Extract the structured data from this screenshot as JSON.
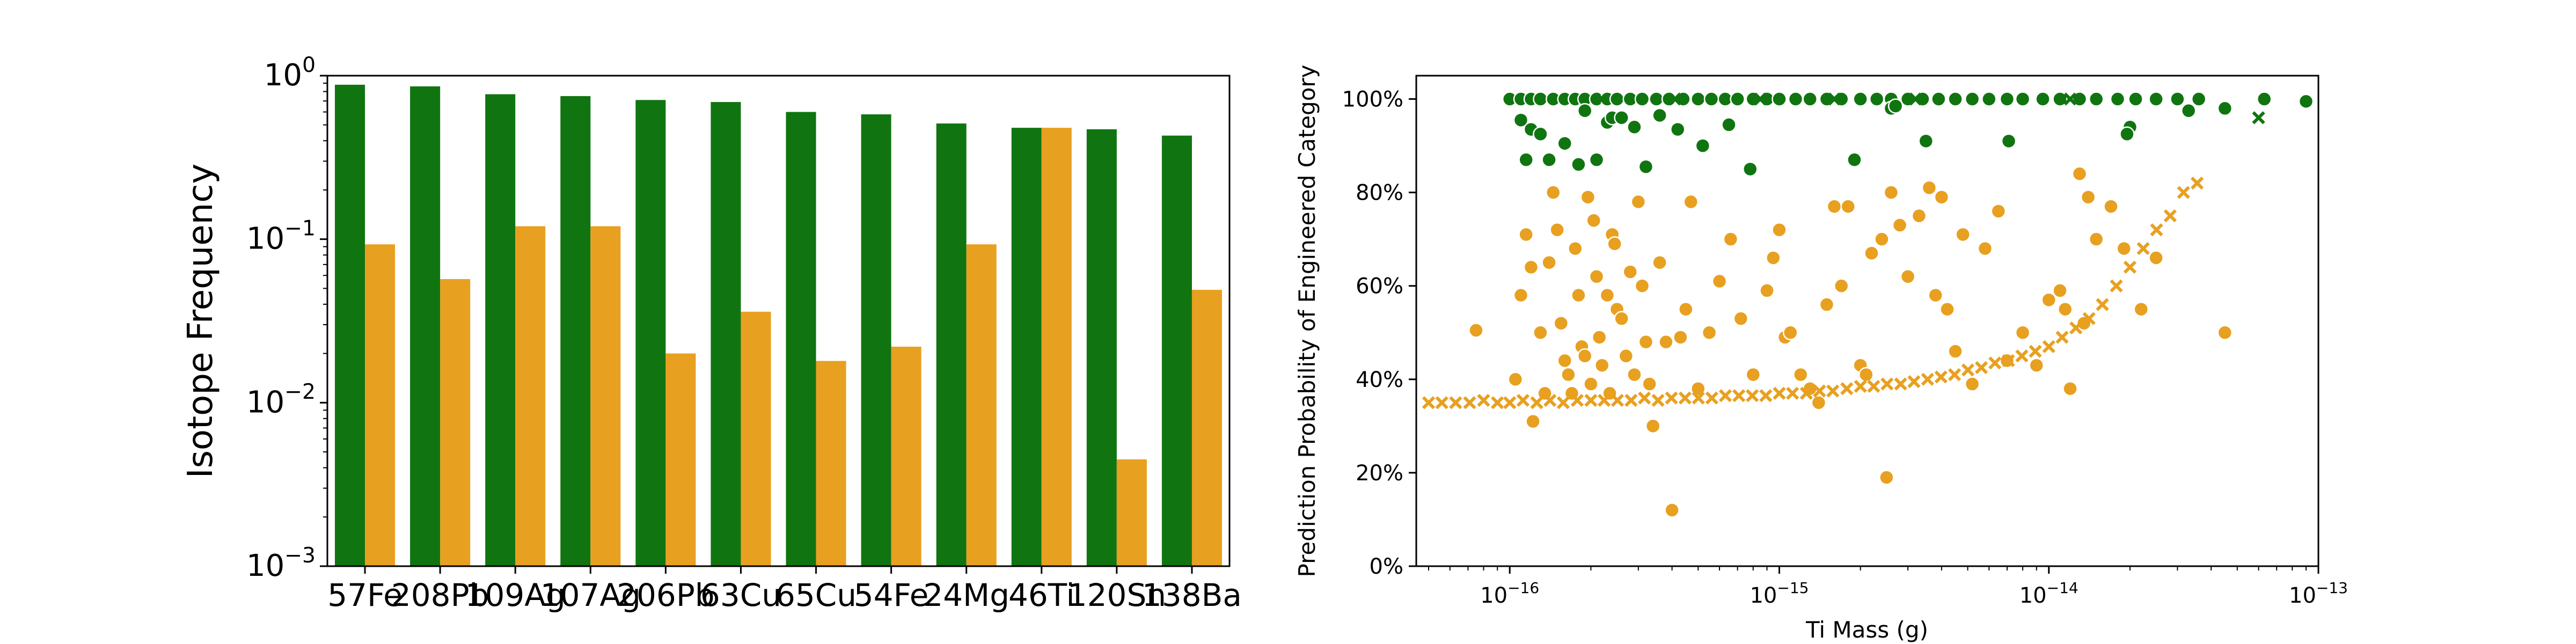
{
  "chart_data": [
    {
      "type": "bar",
      "yscale": "log",
      "ylabel": "Isotope Frequency",
      "xlabel": "",
      "ylim": [
        0.001,
        1
      ],
      "yticks": [
        {
          "value": 1,
          "label": "10^0"
        },
        {
          "value": 0.1,
          "label": "10^-1"
        },
        {
          "value": 0.01,
          "label": "10^-2"
        },
        {
          "value": 0.001,
          "label": "10^-3"
        }
      ],
      "categories": [
        "57Fe",
        "208Pb",
        "109Ag",
        "107Ag",
        "206Pb",
        "63Cu",
        "65Cu",
        "54Fe",
        "24Mg",
        "46Ti",
        "120Sn",
        "138Ba"
      ],
      "series": [
        {
          "color": "#107510",
          "values": [
            0.88,
            0.86,
            0.77,
            0.75,
            0.71,
            0.69,
            0.6,
            0.58,
            0.51,
            0.48,
            0.47,
            0.43
          ]
        },
        {
          "color": "#E8A020",
          "values": [
            0.093,
            0.057,
            0.12,
            0.12,
            0.02,
            0.036,
            0.018,
            0.022,
            0.093,
            0.48,
            0.0045,
            0.049
          ]
        }
      ],
      "grid": false,
      "legend": "none"
    },
    {
      "type": "scatter",
      "xscale": "log",
      "xlabel": "Ti Mass (g)",
      "ylabel": "Prediction Probability of Engineered Category",
      "xlim": [
        4.5e-17,
        1e-13
      ],
      "ylim": [
        0,
        1.05
      ],
      "xticks": [
        {
          "value": 1e-16,
          "label": "10^-16"
        },
        {
          "value": 1e-15,
          "label": "10^-15"
        },
        {
          "value": 1e-14,
          "label": "10^-14"
        },
        {
          "value": 1e-13,
          "label": "10^-13"
        }
      ],
      "yticks": [
        "0%",
        "20%",
        "40%",
        "60%",
        "80%",
        "100%"
      ],
      "grid": false,
      "legend": "none",
      "series": [
        {
          "color": "#107510",
          "marker": "circle",
          "points": [
            [
              1e-16,
              1.0
            ],
            [
              1.1e-16,
              1.0
            ],
            [
              1.2e-16,
              1.0
            ],
            [
              1.3e-16,
              1.0
            ],
            [
              1.45e-16,
              1.0
            ],
            [
              1.6e-16,
              1.0
            ],
            [
              1.75e-16,
              1.0
            ],
            [
              1.9e-16,
              1.0
            ],
            [
              2.1e-16,
              1.0
            ],
            [
              2.3e-16,
              1.0
            ],
            [
              2.5e-16,
              1.0
            ],
            [
              2.8e-16,
              1.0
            ],
            [
              3.1e-16,
              1.0
            ],
            [
              3.5e-16,
              1.0
            ],
            [
              3.9e-16,
              1.0
            ],
            [
              4.4e-16,
              1.0
            ],
            [
              5e-16,
              1.0
            ],
            [
              5.6e-16,
              1.0
            ],
            [
              6.3e-16,
              1.0
            ],
            [
              7e-16,
              1.0
            ],
            [
              8e-16,
              1.0
            ],
            [
              9e-16,
              1.0
            ],
            [
              1e-15,
              1.0
            ],
            [
              1.15e-15,
              1.0
            ],
            [
              1.3e-15,
              1.0
            ],
            [
              1.5e-15,
              1.0
            ],
            [
              1.7e-15,
              1.0
            ],
            [
              2e-15,
              1.0
            ],
            [
              2.3e-15,
              1.0
            ],
            [
              2.6e-15,
              1.0
            ],
            [
              3e-15,
              1.0
            ],
            [
              3.4e-15,
              1.0
            ],
            [
              3.9e-15,
              1.0
            ],
            [
              4.5e-15,
              1.0
            ],
            [
              5.2e-15,
              1.0
            ],
            [
              6e-15,
              1.0
            ],
            [
              7e-15,
              1.0
            ],
            [
              8e-15,
              1.0
            ],
            [
              9.5e-15,
              1.0
            ],
            [
              1.1e-14,
              1.0
            ],
            [
              1.3e-14,
              1.0
            ],
            [
              1.5e-14,
              1.0
            ],
            [
              1.8e-14,
              1.0
            ],
            [
              2.1e-14,
              1.0
            ],
            [
              2.5e-14,
              1.0
            ],
            [
              3e-14,
              1.0
            ],
            [
              3.6e-14,
              1.0
            ],
            [
              9e-14,
              0.995
            ],
            [
              6.3e-14,
              1.0
            ],
            [
              4.5e-14,
              0.98
            ],
            [
              3.3e-14,
              0.975
            ],
            [
              1.1e-16,
              0.955
            ],
            [
              1.2e-16,
              0.935
            ],
            [
              1.15e-16,
              0.87
            ],
            [
              1.3e-16,
              0.925
            ],
            [
              1.4e-16,
              0.87
            ],
            [
              1.6e-16,
              0.905
            ],
            [
              1.8e-16,
              0.86
            ],
            [
              1.9e-16,
              0.975
            ],
            [
              2.1e-16,
              0.87
            ],
            [
              2.3e-16,
              0.95
            ],
            [
              2.4e-16,
              0.96
            ],
            [
              2.6e-16,
              0.96
            ],
            [
              2.9e-16,
              0.94
            ],
            [
              3.2e-16,
              0.855
            ],
            [
              3.6e-16,
              0.965
            ],
            [
              4.2e-16,
              0.935
            ],
            [
              5.2e-16,
              0.9
            ],
            [
              6.5e-16,
              0.945
            ],
            [
              7.8e-16,
              0.85
            ],
            [
              1.9e-15,
              0.87
            ],
            [
              2.6e-15,
              0.98
            ],
            [
              3.5e-15,
              0.91
            ],
            [
              7.1e-15,
              0.91
            ],
            [
              2e-14,
              0.94
            ],
            [
              1.95e-14,
              0.925
            ],
            [
              2.7e-15,
              0.985
            ]
          ]
        },
        {
          "color": "#107510",
          "marker": "x",
          "points": [
            [
              6e-14,
              0.96
            ],
            [
              2.2e-16,
              1.0
            ],
            [
              4.1e-16,
              1.0
            ],
            [
              8.5e-16,
              1.0
            ],
            [
              1.6e-15,
              1.0
            ],
            [
              3.2e-15,
              1.0
            ],
            [
              1.2e-14,
              1.0
            ]
          ]
        },
        {
          "color": "#E8A020",
          "marker": "circle",
          "points": [
            [
              7.5e-17,
              0.505
            ],
            [
              1.05e-16,
              0.4
            ],
            [
              1.1e-16,
              0.58
            ],
            [
              1.15e-16,
              0.71
            ],
            [
              1.2e-16,
              0.64
            ],
            [
              1.22e-16,
              0.31
            ],
            [
              1.3e-16,
              0.5
            ],
            [
              1.35e-16,
              0.37
            ],
            [
              1.4e-16,
              0.65
            ],
            [
              1.45e-16,
              0.8
            ],
            [
              1.5e-16,
              0.72
            ],
            [
              1.55e-16,
              0.52
            ],
            [
              1.6e-16,
              0.44
            ],
            [
              1.65e-16,
              0.41
            ],
            [
              1.7e-16,
              0.37
            ],
            [
              1.75e-16,
              0.68
            ],
            [
              1.8e-16,
              0.58
            ],
            [
              1.85e-16,
              0.47
            ],
            [
              1.9e-16,
              0.45
            ],
            [
              1.95e-16,
              0.79
            ],
            [
              2e-16,
              0.39
            ],
            [
              2.05e-16,
              0.74
            ],
            [
              2.1e-16,
              0.62
            ],
            [
              2.15e-16,
              0.49
            ],
            [
              2.2e-16,
              0.43
            ],
            [
              2.3e-16,
              0.58
            ],
            [
              2.35e-16,
              0.37
            ],
            [
              2.4e-16,
              0.71
            ],
            [
              2.45e-16,
              0.69
            ],
            [
              2.5e-16,
              0.55
            ],
            [
              2.6e-16,
              0.53
            ],
            [
              2.7e-16,
              0.45
            ],
            [
              2.8e-16,
              0.63
            ],
            [
              2.9e-16,
              0.41
            ],
            [
              3e-16,
              0.78
            ],
            [
              3.1e-16,
              0.6
            ],
            [
              3.2e-16,
              0.48
            ],
            [
              3.3e-16,
              0.39
            ],
            [
              3.4e-16,
              0.3
            ],
            [
              3.6e-16,
              0.65
            ],
            [
              3.8e-16,
              0.48
            ],
            [
              4e-16,
              0.12
            ],
            [
              4.3e-16,
              0.49
            ],
            [
              4.5e-16,
              0.55
            ],
            [
              4.7e-16,
              0.78
            ],
            [
              5e-16,
              0.38
            ],
            [
              5.5e-16,
              0.5
            ],
            [
              6e-16,
              0.61
            ],
            [
              6.6e-16,
              0.7
            ],
            [
              7.2e-16,
              0.53
            ],
            [
              8e-16,
              0.41
            ],
            [
              9e-16,
              0.59
            ],
            [
              9.5e-16,
              0.66
            ],
            [
              1e-15,
              0.72
            ],
            [
              1.05e-15,
              0.49
            ],
            [
              1.1e-15,
              0.5
            ],
            [
              1.2e-15,
              0.41
            ],
            [
              1.3e-15,
              0.38
            ],
            [
              1.4e-15,
              0.35
            ],
            [
              1.5e-15,
              0.56
            ],
            [
              1.6e-15,
              0.77
            ],
            [
              1.7e-15,
              0.6
            ],
            [
              1.8e-15,
              0.77
            ],
            [
              2e-15,
              0.43
            ],
            [
              2.1e-15,
              0.41
            ],
            [
              2.2e-15,
              0.67
            ],
            [
              2.4e-15,
              0.7
            ],
            [
              2.5e-15,
              0.19
            ],
            [
              2.6e-15,
              0.8
            ],
            [
              2.8e-15,
              0.73
            ],
            [
              3e-15,
              0.62
            ],
            [
              3.3e-15,
              0.75
            ],
            [
              3.6e-15,
              0.81
            ],
            [
              3.8e-15,
              0.58
            ],
            [
              4e-15,
              0.79
            ],
            [
              4.2e-15,
              0.55
            ],
            [
              4.5e-15,
              0.46
            ],
            [
              4.8e-15,
              0.71
            ],
            [
              5.2e-15,
              0.39
            ],
            [
              5.8e-15,
              0.68
            ],
            [
              6.5e-15,
              0.76
            ],
            [
              7e-15,
              0.44
            ],
            [
              8e-15,
              0.5
            ],
            [
              9e-15,
              0.43
            ],
            [
              1e-14,
              0.57
            ],
            [
              1.1e-14,
              0.59
            ],
            [
              1.2e-14,
              0.38
            ],
            [
              1.3e-14,
              0.84
            ],
            [
              1.4e-14,
              0.79
            ],
            [
              1.5e-14,
              0.7
            ],
            [
              1.7e-14,
              0.77
            ],
            [
              1.9e-14,
              0.68
            ],
            [
              2.2e-14,
              0.55
            ],
            [
              2.5e-14,
              0.66
            ],
            [
              4.5e-14,
              0.5
            ],
            [
              1.35e-14,
              0.52
            ],
            [
              1.15e-14,
              0.55
            ]
          ]
        },
        {
          "color": "#E8A020",
          "marker": "x",
          "points": [
            [
              5e-17,
              0.35
            ],
            [
              5.6e-17,
              0.35
            ],
            [
              6.3e-17,
              0.35
            ],
            [
              7.1e-17,
              0.35
            ],
            [
              8e-17,
              0.355
            ],
            [
              9e-17,
              0.35
            ],
            [
              1e-16,
              0.35
            ],
            [
              1.12e-16,
              0.355
            ],
            [
              1.26e-16,
              0.35
            ],
            [
              1.41e-16,
              0.355
            ],
            [
              1.58e-16,
              0.35
            ],
            [
              1.78e-16,
              0.355
            ],
            [
              2e-16,
              0.355
            ],
            [
              2.24e-16,
              0.355
            ],
            [
              2.51e-16,
              0.355
            ],
            [
              2.82e-16,
              0.355
            ],
            [
              3.16e-16,
              0.36
            ],
            [
              3.55e-16,
              0.355
            ],
            [
              3.98e-16,
              0.36
            ],
            [
              4.47e-16,
              0.36
            ],
            [
              5.01e-16,
              0.36
            ],
            [
              5.62e-16,
              0.36
            ],
            [
              6.31e-16,
              0.365
            ],
            [
              7.08e-16,
              0.365
            ],
            [
              7.94e-16,
              0.365
            ],
            [
              8.91e-16,
              0.365
            ],
            [
              1e-15,
              0.37
            ],
            [
              1.12e-15,
              0.37
            ],
            [
              1.26e-15,
              0.37
            ],
            [
              1.41e-15,
              0.375
            ],
            [
              1.58e-15,
              0.375
            ],
            [
              1.78e-15,
              0.38
            ],
            [
              2e-15,
              0.385
            ],
            [
              2.24e-15,
              0.385
            ],
            [
              2.51e-15,
              0.39
            ],
            [
              2.82e-15,
              0.39
            ],
            [
              3.16e-15,
              0.395
            ],
            [
              3.55e-15,
              0.4
            ],
            [
              3.98e-15,
              0.405
            ],
            [
              4.47e-15,
              0.41
            ],
            [
              5.01e-15,
              0.42
            ],
            [
              5.62e-15,
              0.425
            ],
            [
              6.31e-15,
              0.435
            ],
            [
              7.08e-15,
              0.44
            ],
            [
              7.94e-15,
              0.45
            ],
            [
              8.91e-15,
              0.46
            ],
            [
              1e-14,
              0.47
            ],
            [
              1.12e-14,
              0.49
            ],
            [
              1.26e-14,
              0.51
            ],
            [
              1.41e-14,
              0.53
            ],
            [
              1.58e-14,
              0.56
            ],
            [
              1.78e-14,
              0.6
            ],
            [
              2e-14,
              0.64
            ],
            [
              2.24e-14,
              0.68
            ],
            [
              2.51e-14,
              0.72
            ],
            [
              2.82e-14,
              0.75
            ],
            [
              3.16e-14,
              0.8
            ],
            [
              3.55e-14,
              0.82
            ]
          ]
        }
      ]
    }
  ]
}
